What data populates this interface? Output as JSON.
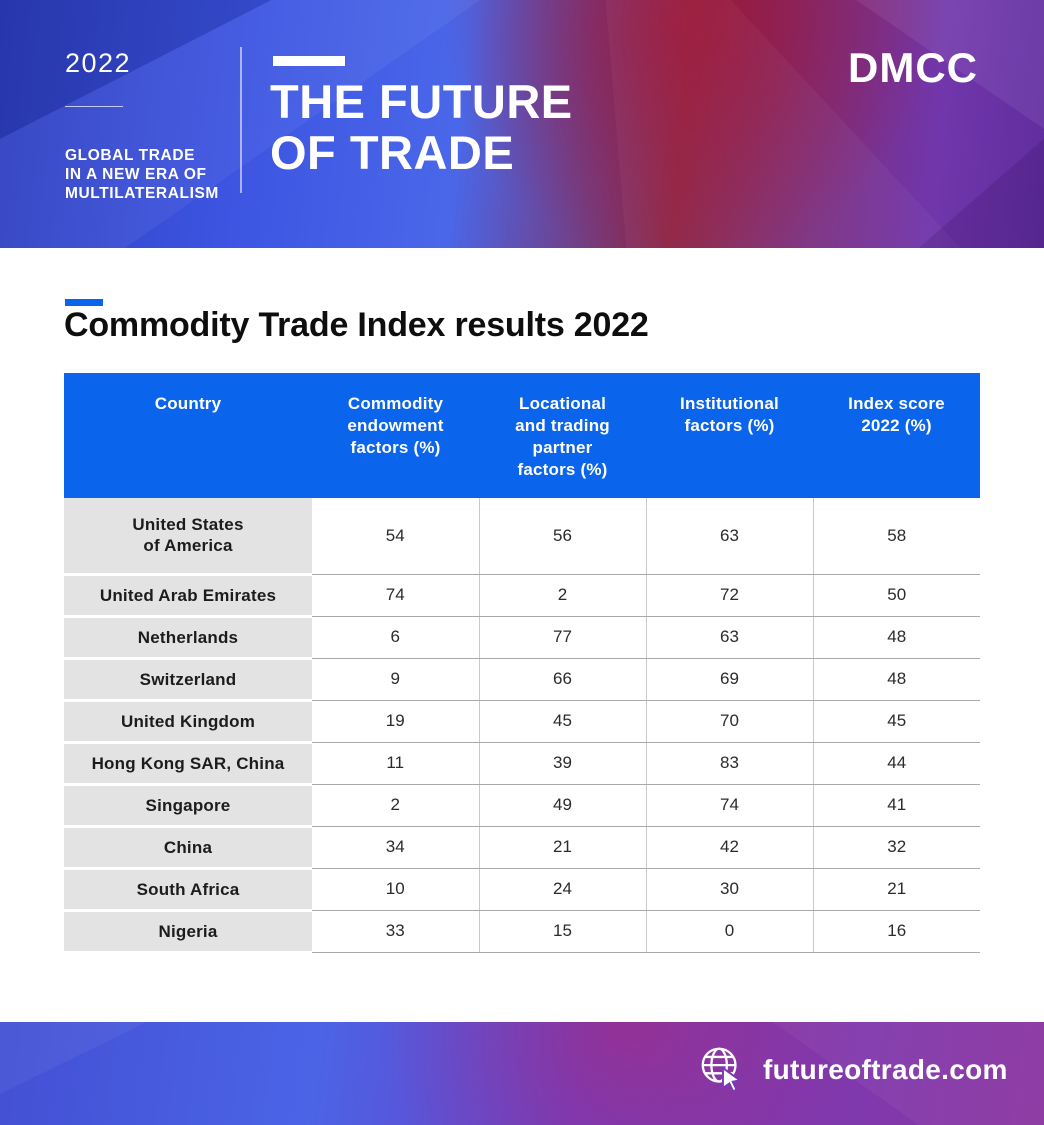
{
  "header": {
    "year": "2022",
    "tagline": "GLOBAL TRADE\nIN A NEW ERA OF\nMULTILATERALISM",
    "title": "THE FUTURE\nOF TRADE",
    "logo": "DMCC"
  },
  "section": {
    "title": "Commodity Trade Index results 2022"
  },
  "table": {
    "columns": [
      "Country",
      "Commodity\nendowment\nfactors (%)",
      "Locational\nand trading\npartner\nfactors (%)",
      "Institutional\nfactors (%)",
      "Index score\n2022 (%)"
    ],
    "rows": [
      {
        "country": "United States\nof America",
        "values": [
          "54",
          "56",
          "63",
          "58"
        ]
      },
      {
        "country": "United Arab Emirates",
        "values": [
          "74",
          "2",
          "72",
          "50"
        ]
      },
      {
        "country": "Netherlands",
        "values": [
          "6",
          "77",
          "63",
          "48"
        ]
      },
      {
        "country": "Switzerland",
        "values": [
          "9",
          "66",
          "69",
          "48"
        ]
      },
      {
        "country": "United Kingdom",
        "values": [
          "19",
          "45",
          "70",
          "45"
        ]
      },
      {
        "country": "Hong Kong SAR, China",
        "values": [
          "11",
          "39",
          "83",
          "44"
        ]
      },
      {
        "country": "Singapore",
        "values": [
          "2",
          "49",
          "74",
          "41"
        ]
      },
      {
        "country": "China",
        "values": [
          "34",
          "21",
          "42",
          "32"
        ]
      },
      {
        "country": "South Africa",
        "values": [
          "10",
          "24",
          "30",
          "21"
        ]
      },
      {
        "country": "Nigeria",
        "values": [
          "33",
          "15",
          "0",
          "16"
        ]
      }
    ]
  },
  "footer": {
    "url": "futureoftrade.com",
    "icon": "globe-cursor-icon"
  },
  "colors": {
    "accent_blue": "#0b64ec",
    "table_header_bg": "#0b64ec",
    "country_column_bg": "#e3e3e3",
    "row_border_gray": "#a9a9a9",
    "hero_gradient": [
      "#2e3fc0",
      "#3d55e2",
      "#4a67e9",
      "#8e2342",
      "#7136ab",
      "#5f2d9e"
    ],
    "footer_gradient": [
      "#4350d4",
      "#4b64e7",
      "#7b3ab4",
      "#8a35a0"
    ],
    "text_dark": "#0e0e0e",
    "text_white": "#ffffff"
  },
  "chart_data": {
    "type": "table",
    "title": "Commodity Trade Index results 2022",
    "columns": [
      "Country",
      "Commodity endowment factors (%)",
      "Locational and trading partner factors (%)",
      "Institutional factors (%)",
      "Index score 2022 (%)"
    ],
    "rows": [
      [
        "United States of America",
        54,
        56,
        63,
        58
      ],
      [
        "United Arab Emirates",
        74,
        2,
        72,
        50
      ],
      [
        "Netherlands",
        6,
        77,
        63,
        48
      ],
      [
        "Switzerland",
        9,
        66,
        69,
        48
      ],
      [
        "United Kingdom",
        19,
        45,
        70,
        45
      ],
      [
        "Hong Kong SAR, China",
        11,
        39,
        83,
        44
      ],
      [
        "Singapore",
        2,
        49,
        74,
        41
      ],
      [
        "China",
        34,
        21,
        42,
        32
      ],
      [
        "South Africa",
        10,
        24,
        30,
        21
      ],
      [
        "Nigeria",
        33,
        15,
        0,
        16
      ]
    ]
  }
}
